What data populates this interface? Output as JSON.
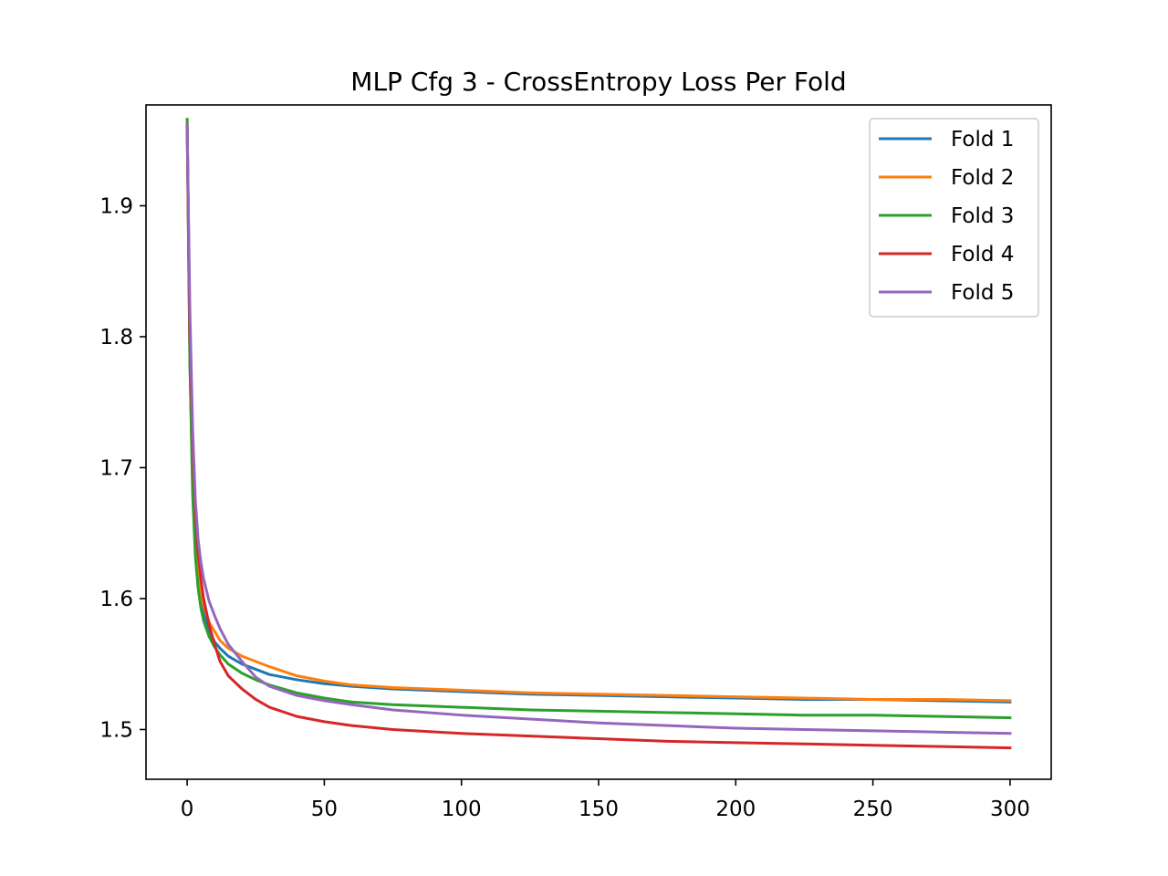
{
  "chart_data": {
    "type": "line",
    "title": "MLP Cfg 3 - CrossEntropy Loss Per Fold",
    "xlabel": "",
    "ylabel": "",
    "xlim": [
      -15,
      315
    ],
    "ylim": [
      1.462,
      1.977
    ],
    "x_ticks": [
      0,
      50,
      100,
      150,
      200,
      250,
      300
    ],
    "y_ticks": [
      1.5,
      1.6,
      1.7,
      1.8,
      1.9
    ],
    "x_tick_labels": [
      "0",
      "50",
      "100",
      "150",
      "200",
      "250",
      "300"
    ],
    "y_tick_labels": [
      "1.5",
      "1.6",
      "1.7",
      "1.8",
      "1.9"
    ],
    "grid": false,
    "legend_position": "top-right",
    "x": [
      0,
      1,
      2,
      3,
      4,
      5,
      6,
      8,
      10,
      12,
      15,
      20,
      25,
      30,
      40,
      50,
      60,
      75,
      100,
      125,
      150,
      175,
      200,
      225,
      250,
      275,
      300
    ],
    "series": [
      {
        "name": "Fold 1",
        "color": "#1f77b4",
        "values": [
          1.962,
          1.78,
          1.69,
          1.64,
          1.615,
          1.598,
          1.588,
          1.575,
          1.567,
          1.562,
          1.556,
          1.55,
          1.546,
          1.542,
          1.538,
          1.535,
          1.533,
          1.531,
          1.529,
          1.527,
          1.526,
          1.525,
          1.524,
          1.523,
          1.523,
          1.522,
          1.521
        ]
      },
      {
        "name": "Fold 2",
        "color": "#ff7f0e",
        "values": [
          1.962,
          1.8,
          1.7,
          1.65,
          1.625,
          1.605,
          1.595,
          1.582,
          1.575,
          1.568,
          1.562,
          1.556,
          1.552,
          1.548,
          1.541,
          1.537,
          1.534,
          1.532,
          1.53,
          1.528,
          1.527,
          1.526,
          1.525,
          1.524,
          1.523,
          1.523,
          1.522
        ]
      },
      {
        "name": "Fold 3",
        "color": "#2ca02c",
        "values": [
          1.966,
          1.78,
          1.68,
          1.632,
          1.608,
          1.593,
          1.583,
          1.571,
          1.563,
          1.557,
          1.55,
          1.543,
          1.538,
          1.534,
          1.528,
          1.524,
          1.521,
          1.519,
          1.517,
          1.515,
          1.514,
          1.513,
          1.512,
          1.511,
          1.511,
          1.51,
          1.509
        ]
      },
      {
        "name": "Fold 4",
        "color": "#d62728",
        "values": [
          1.962,
          1.8,
          1.72,
          1.665,
          1.635,
          1.615,
          1.6,
          1.58,
          1.565,
          1.552,
          1.541,
          1.531,
          1.523,
          1.517,
          1.51,
          1.506,
          1.503,
          1.5,
          1.497,
          1.495,
          1.493,
          1.491,
          1.49,
          1.489,
          1.488,
          1.487,
          1.486
        ]
      },
      {
        "name": "Fold 5",
        "color": "#9467bd",
        "values": [
          1.962,
          1.82,
          1.73,
          1.675,
          1.645,
          1.628,
          1.615,
          1.598,
          1.587,
          1.577,
          1.565,
          1.552,
          1.54,
          1.533,
          1.526,
          1.522,
          1.519,
          1.515,
          1.511,
          1.508,
          1.505,
          1.503,
          1.501,
          1.5,
          1.499,
          1.498,
          1.497
        ]
      }
    ]
  }
}
